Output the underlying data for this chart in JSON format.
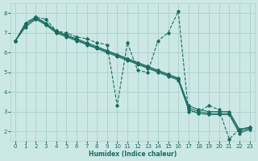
{
  "xlabel": "Humidex (Indice chaleur)",
  "ylabel": "",
  "xlim": [
    -0.5,
    23.5
  ],
  "ylim": [
    1.5,
    8.5
  ],
  "xticks": [
    0,
    1,
    2,
    3,
    4,
    5,
    6,
    7,
    8,
    9,
    10,
    11,
    12,
    13,
    14,
    15,
    16,
    17,
    18,
    19,
    20,
    21,
    22,
    23
  ],
  "yticks": [
    2,
    3,
    4,
    5,
    6,
    7,
    8
  ],
  "bg_color": "#cce8e4",
  "grid_color": "#aacfca",
  "line_color": "#1a6b60",
  "line1_x": [
    0,
    1,
    2,
    3,
    4,
    5,
    6,
    7,
    8,
    9,
    10,
    11,
    12,
    13,
    14,
    15,
    16,
    17,
    18,
    19,
    20,
    21,
    22,
    23
  ],
  "line1_y": [
    6.6,
    7.5,
    7.8,
    7.7,
    7.1,
    7.0,
    6.8,
    6.7,
    6.5,
    6.4,
    3.3,
    6.5,
    5.1,
    5.0,
    6.6,
    7.0,
    8.1,
    3.0,
    3.0,
    3.3,
    3.1,
    1.6,
    2.1,
    2.2
  ],
  "line2_x": [
    0,
    1,
    2,
    3,
    4,
    5,
    6,
    7,
    8,
    9,
    10,
    11,
    12,
    13,
    14,
    15,
    16,
    17,
    18,
    19,
    20,
    21,
    22,
    23
  ],
  "line2_y": [
    6.6,
    7.5,
    7.8,
    7.5,
    7.1,
    6.9,
    6.7,
    6.5,
    6.3,
    6.1,
    5.9,
    5.7,
    5.5,
    5.3,
    5.1,
    4.9,
    4.7,
    3.3,
    3.1,
    3.0,
    3.0,
    3.0,
    2.1,
    2.2
  ],
  "line3_x": [
    0,
    1,
    2,
    3,
    4,
    5,
    6,
    7,
    8,
    9,
    10,
    11,
    12,
    13,
    14,
    15,
    16,
    17,
    18,
    19,
    20,
    21,
    22,
    23
  ],
  "line3_y": [
    6.6,
    7.4,
    7.75,
    7.45,
    7.05,
    6.85,
    6.65,
    6.45,
    6.25,
    6.05,
    5.85,
    5.65,
    5.45,
    5.25,
    5.05,
    4.85,
    4.65,
    3.2,
    3.0,
    2.9,
    2.9,
    2.9,
    2.0,
    2.15
  ],
  "line4_x": [
    0,
    1,
    2,
    3,
    4,
    5,
    6,
    7,
    8,
    9,
    10,
    11,
    12,
    13,
    14,
    15,
    16,
    17,
    18,
    19,
    20,
    21,
    22,
    23
  ],
  "line4_y": [
    6.6,
    7.3,
    7.7,
    7.4,
    7.0,
    6.8,
    6.6,
    6.4,
    6.2,
    6.0,
    5.8,
    5.6,
    5.4,
    5.2,
    5.0,
    4.8,
    4.6,
    3.1,
    2.9,
    2.85,
    2.85,
    2.85,
    1.9,
    2.1
  ]
}
